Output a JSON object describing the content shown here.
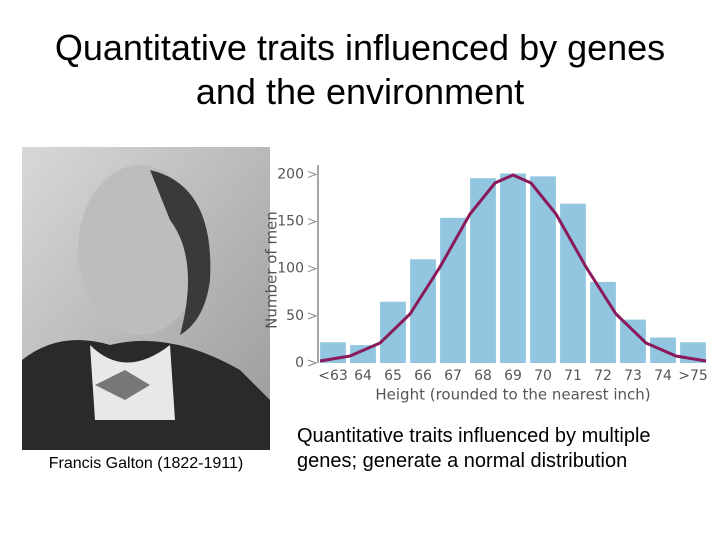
{
  "title": "Quantitative traits influenced by genes and the environment",
  "photo_caption": "Francis Galton (1822-1911)",
  "chart_caption": "Quantitative traits influenced by multiple genes; generate a normal distribution",
  "chart_data": {
    "type": "bar",
    "x_label": "Height (rounded to the nearest inch)",
    "y_label": "Number of men",
    "categories": [
      "<63",
      "64",
      "65",
      "66",
      "67",
      "68",
      "69",
      "70",
      "71",
      "72",
      "73",
      "74",
      ">75"
    ],
    "values": [
      22,
      19,
      65,
      110,
      154,
      196,
      201,
      198,
      169,
      86,
      46,
      27,
      22
    ],
    "color": "#92c6e0",
    "ylim": [
      0,
      210
    ],
    "yticks": [
      0,
      50,
      100,
      150,
      200
    ],
    "grid": false
  }
}
